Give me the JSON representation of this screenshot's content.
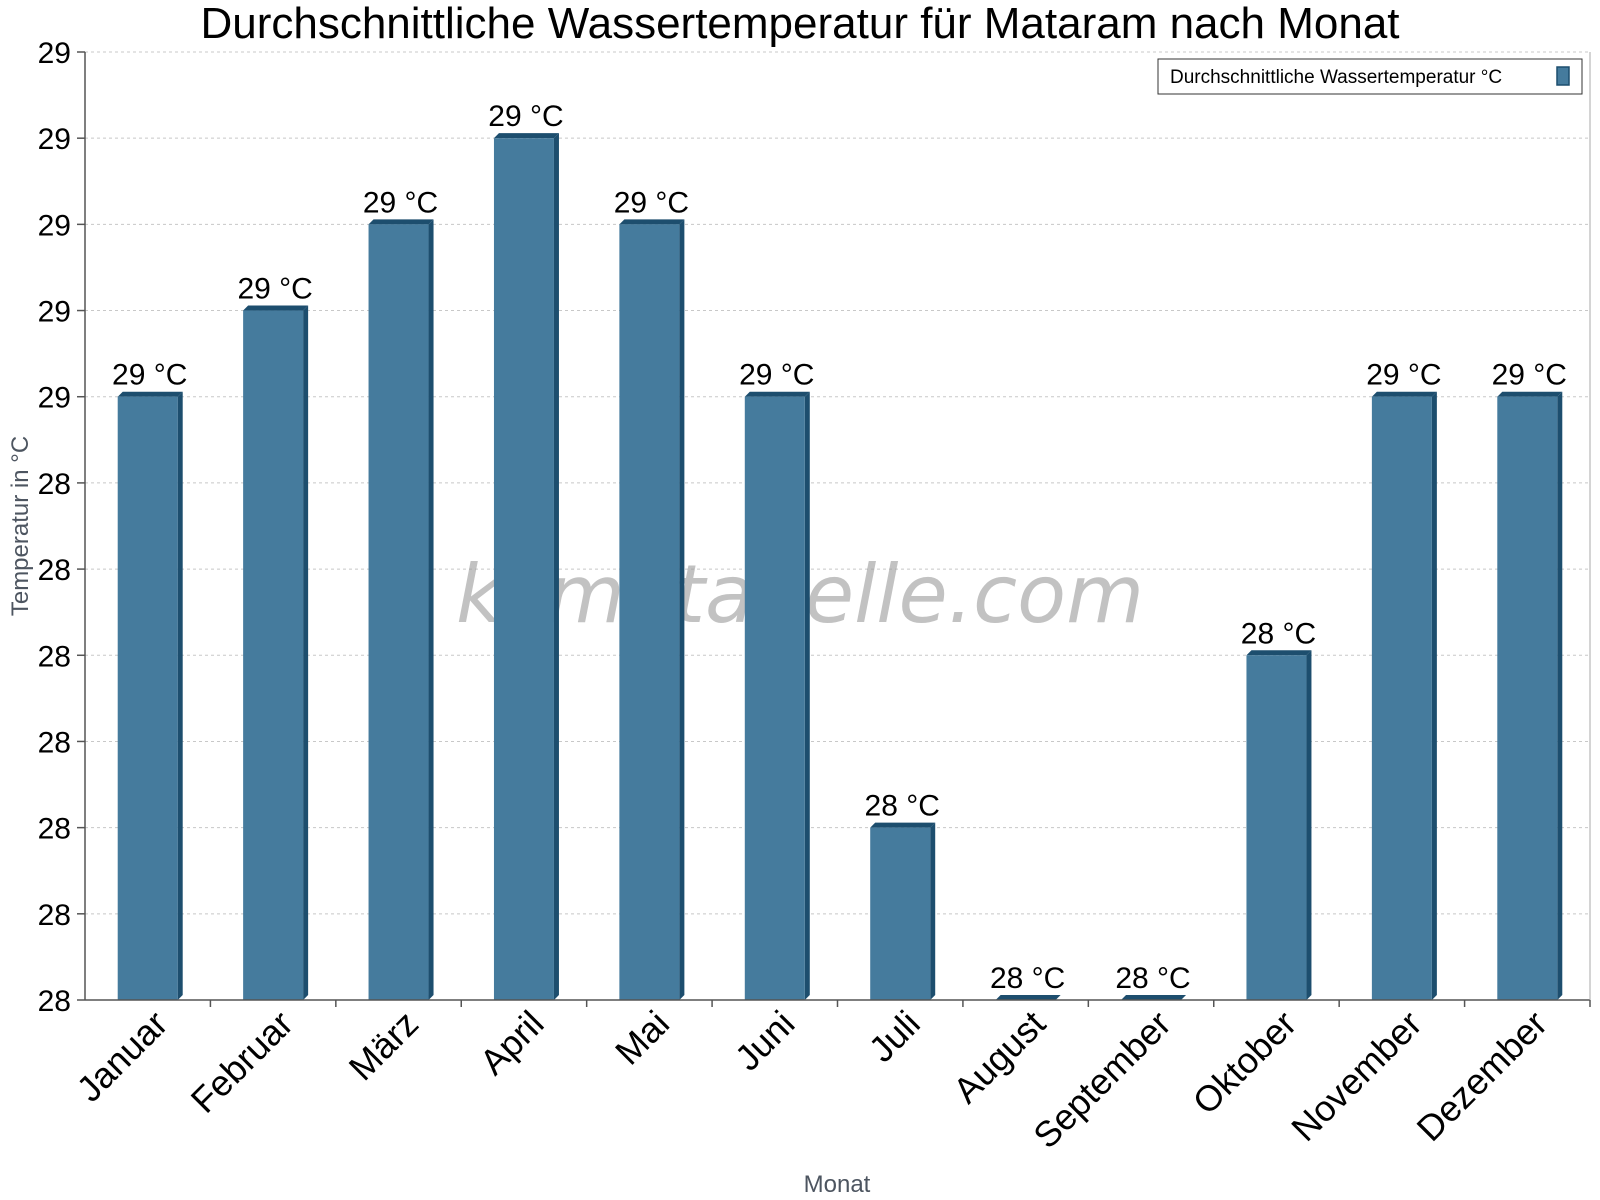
{
  "chart_data": {
    "type": "bar",
    "title": "Durchschnittliche Wassertemperatur für Mataram nach Monat",
    "xlabel": "Monat",
    "ylabel": "Temperatur in °C",
    "categories": [
      "Januar",
      "Februar",
      "März",
      "April",
      "Mai",
      "Juni",
      "Juli",
      "August",
      "September",
      "Oktober",
      "November",
      "Dezember"
    ],
    "series": [
      {
        "name": "Durchschnittliche Wassertemperatur °C",
        "values": [
          28.7,
          28.8,
          28.9,
          29.0,
          28.9,
          28.7,
          28.2,
          28.0,
          28.0,
          28.4,
          28.7,
          28.7
        ],
        "labels": [
          "29 °C",
          "29 °C",
          "29 °C",
          "29 °C",
          "29 °C",
          "29 °C",
          "28 °C",
          "28 °C",
          "28 °C",
          "28 °C",
          "29 °C",
          "29 °C"
        ],
        "color": "#457b9d"
      }
    ],
    "ylim": [
      28.0,
      29.05
    ],
    "yticks": [
      28.0,
      28.1,
      28.2,
      28.3,
      28.4,
      28.5,
      28.6,
      28.7,
      28.8,
      28.9,
      29.0,
      29.1
    ],
    "ytick_labels": [
      "28",
      "28",
      "28",
      "28",
      "28",
      "28",
      "28",
      "29",
      "29",
      "29",
      "29",
      "29"
    ],
    "grid": true,
    "legend_position": "top-right",
    "colors": {
      "bar": "#457b9d",
      "bar_edge": "#1d4e6e",
      "watermark": "#9a9a9a"
    },
    "watermark": "klimatabelle.com"
  }
}
